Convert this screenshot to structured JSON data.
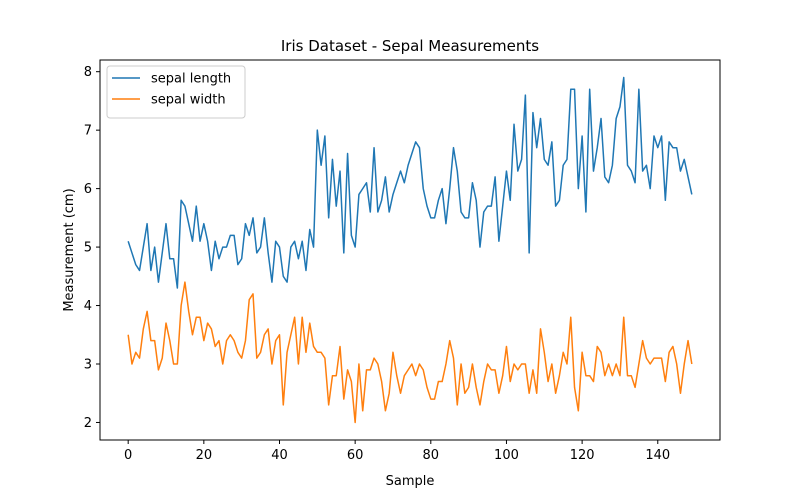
{
  "chart_data": {
    "type": "line",
    "title": "Iris Dataset - Sepal Measurements",
    "xlabel": "Sample",
    "ylabel": "Measurement (cm)",
    "xlim": [
      -7.45,
      156.45
    ],
    "ylim": [
      1.7,
      8.2
    ],
    "xticks": [
      0,
      20,
      40,
      60,
      80,
      100,
      120,
      140
    ],
    "yticks": [
      2,
      3,
      4,
      5,
      6,
      7,
      8
    ],
    "grid": false,
    "legend_position": "upper-left",
    "series": [
      {
        "name": "sepal length",
        "color": "#1f77b4",
        "values": [
          5.1,
          4.9,
          4.7,
          4.6,
          5.0,
          5.4,
          4.6,
          5.0,
          4.4,
          4.9,
          5.4,
          4.8,
          4.8,
          4.3,
          5.8,
          5.7,
          5.4,
          5.1,
          5.7,
          5.1,
          5.4,
          5.1,
          4.6,
          5.1,
          4.8,
          5.0,
          5.0,
          5.2,
          5.2,
          4.7,
          4.8,
          5.4,
          5.2,
          5.5,
          4.9,
          5.0,
          5.5,
          4.9,
          4.4,
          5.1,
          5.0,
          4.5,
          4.4,
          5.0,
          5.1,
          4.8,
          5.1,
          4.6,
          5.3,
          5.0,
          7.0,
          6.4,
          6.9,
          5.5,
          6.5,
          5.7,
          6.3,
          4.9,
          6.6,
          5.2,
          5.0,
          5.9,
          6.0,
          6.1,
          5.6,
          6.7,
          5.6,
          5.8,
          6.2,
          5.6,
          5.9,
          6.1,
          6.3,
          6.1,
          6.4,
          6.6,
          6.8,
          6.7,
          6.0,
          5.7,
          5.5,
          5.5,
          5.8,
          6.0,
          5.4,
          6.0,
          6.7,
          6.3,
          5.6,
          5.5,
          5.5,
          6.1,
          5.8,
          5.0,
          5.6,
          5.7,
          5.7,
          6.2,
          5.1,
          5.7,
          6.3,
          5.8,
          7.1,
          6.3,
          6.5,
          7.6,
          4.9,
          7.3,
          6.7,
          7.2,
          6.5,
          6.4,
          6.8,
          5.7,
          5.8,
          6.4,
          6.5,
          7.7,
          7.7,
          6.0,
          6.9,
          5.6,
          7.7,
          6.3,
          6.7,
          7.2,
          6.2,
          6.1,
          6.4,
          7.2,
          7.4,
          7.9,
          6.4,
          6.3,
          6.1,
          7.7,
          6.3,
          6.4,
          6.0,
          6.9,
          6.7,
          6.9,
          5.8,
          6.8,
          6.7,
          6.7,
          6.3,
          6.5,
          6.2,
          5.9
        ]
      },
      {
        "name": "sepal width",
        "color": "#ff7f0e",
        "values": [
          3.5,
          3.0,
          3.2,
          3.1,
          3.6,
          3.9,
          3.4,
          3.4,
          2.9,
          3.1,
          3.7,
          3.4,
          3.0,
          3.0,
          4.0,
          4.4,
          3.9,
          3.5,
          3.8,
          3.8,
          3.4,
          3.7,
          3.6,
          3.3,
          3.4,
          3.0,
          3.4,
          3.5,
          3.4,
          3.2,
          3.1,
          3.4,
          4.1,
          4.2,
          3.1,
          3.2,
          3.5,
          3.6,
          3.0,
          3.4,
          3.5,
          2.3,
          3.2,
          3.5,
          3.8,
          3.0,
          3.8,
          3.2,
          3.7,
          3.3,
          3.2,
          3.2,
          3.1,
          2.3,
          2.8,
          2.8,
          3.3,
          2.4,
          2.9,
          2.7,
          2.0,
          3.0,
          2.2,
          2.9,
          2.9,
          3.1,
          3.0,
          2.7,
          2.2,
          2.5,
          3.2,
          2.8,
          2.5,
          2.8,
          2.9,
          3.0,
          2.8,
          3.0,
          2.9,
          2.6,
          2.4,
          2.4,
          2.7,
          2.7,
          3.0,
          3.4,
          3.1,
          2.3,
          3.0,
          2.5,
          2.6,
          3.0,
          2.6,
          2.3,
          2.7,
          3.0,
          2.9,
          2.9,
          2.5,
          2.8,
          3.3,
          2.7,
          3.0,
          2.9,
          3.0,
          3.0,
          2.5,
          2.9,
          2.5,
          3.6,
          3.2,
          2.7,
          3.0,
          2.5,
          2.8,
          3.2,
          3.0,
          3.8,
          2.6,
          2.2,
          3.2,
          2.8,
          2.8,
          2.7,
          3.3,
          3.2,
          2.8,
          3.0,
          2.8,
          3.0,
          2.8,
          3.8,
          2.8,
          2.8,
          2.6,
          3.0,
          3.4,
          3.1,
          3.0,
          3.1,
          3.1,
          3.1,
          2.7,
          3.2,
          3.3,
          3.0,
          2.5,
          3.0,
          3.4,
          3.0
        ]
      }
    ]
  }
}
